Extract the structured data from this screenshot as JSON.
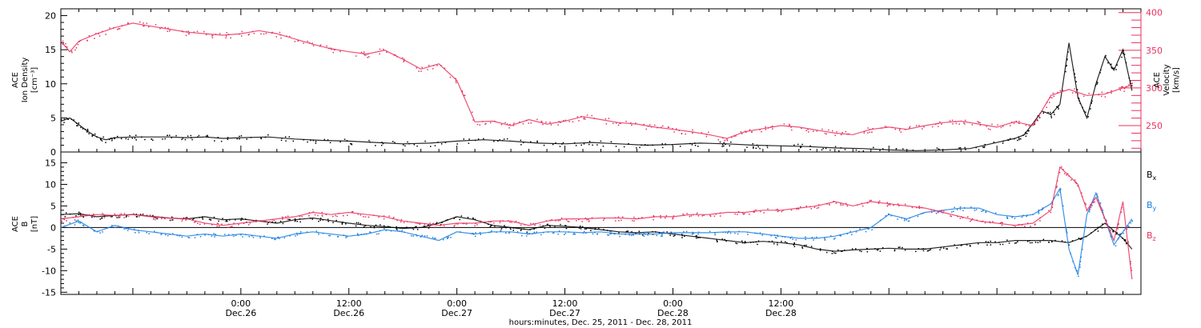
{
  "colors": {
    "black": "#000000",
    "pink": "#e8315f",
    "blue": "#1a7fe0"
  },
  "chart_data": [
    {
      "type": "scatter",
      "ylabel_lines": [
        "ACE",
        "Ion Density",
        "[cm⁻³]"
      ],
      "y2label_lines": [
        "ACE",
        "Velocity",
        "[km/s]"
      ],
      "xlim_hours": [
        -20,
        100
      ],
      "ylim": [
        0,
        21
      ],
      "y2lim": [
        215,
        405
      ],
      "yticks": [
        0,
        5,
        10,
        15,
        20
      ],
      "y2ticks": [
        250,
        300,
        350,
        400
      ],
      "series": [
        {
          "key": "density",
          "color": "#000000",
          "axis": "left",
          "x": [
            -20,
            -19,
            -18,
            -17,
            -16,
            -15,
            -14,
            -12,
            -10,
            -8,
            -6,
            -4,
            -2,
            0,
            3,
            6,
            9,
            12,
            15,
            18,
            21,
            24,
            27,
            30,
            33,
            36,
            39,
            42,
            45,
            48,
            51,
            54,
            57,
            60,
            63,
            66,
            69,
            72,
            75,
            78,
            81,
            84,
            86,
            87,
            88,
            89,
            90,
            91,
            92,
            93,
            94,
            95,
            96,
            97,
            98,
            99
          ],
          "y": [
            4.5,
            5,
            4,
            3,
            2.2,
            1.8,
            2.1,
            2.2,
            2.2,
            2.2,
            2.1,
            2.2,
            2.0,
            2.1,
            2.2,
            1.9,
            1.7,
            1.6,
            1.4,
            1.2,
            1.3,
            1.6,
            1.8,
            1.6,
            1.3,
            1.2,
            1.4,
            1.2,
            1.0,
            1.1,
            1.3,
            1.2,
            1.0,
            0.9,
            0.8,
            0.6,
            0.5,
            0.3,
            0.2,
            0.3,
            0.5,
            1.4,
            2.0,
            2.5,
            4.2,
            6.0,
            5.5,
            7.0,
            16.0,
            8.0,
            5.0,
            10.0,
            14.0,
            12.0,
            15.0,
            9.0
          ]
        },
        {
          "key": "velocity",
          "color": "#e8315f",
          "axis": "right",
          "x": [
            -20,
            -19,
            -18,
            -16,
            -14,
            -12,
            -10,
            -8,
            -6,
            -4,
            -2,
            0,
            2,
            4,
            6,
            8,
            10,
            12,
            14,
            16,
            18,
            20,
            22,
            24,
            26,
            28,
            30,
            32,
            34,
            36,
            38,
            40,
            42,
            44,
            46,
            48,
            50,
            52,
            54,
            56,
            58,
            60,
            62,
            64,
            66,
            68,
            70,
            72,
            74,
            76,
            78,
            80,
            82,
            84,
            86,
            88,
            90,
            92,
            94,
            96,
            98,
            99
          ],
          "y": [
            362,
            348,
            362,
            372,
            380,
            386,
            382,
            378,
            374,
            372,
            370,
            372,
            376,
            372,
            365,
            358,
            352,
            348,
            345,
            350,
            338,
            325,
            332,
            310,
            255,
            256,
            250,
            258,
            252,
            256,
            262,
            258,
            254,
            252,
            248,
            245,
            242,
            238,
            233,
            242,
            246,
            250,
            248,
            244,
            240,
            238,
            245,
            248,
            245,
            250,
            254,
            256,
            252,
            248,
            255,
            250,
            290,
            298,
            290,
            292,
            300,
            304
          ]
        }
      ]
    },
    {
      "type": "scatter",
      "ylabel_lines": [
        "ACE",
        "B",
        "[nT]"
      ],
      "xlim_hours": [
        -20,
        100
      ],
      "ylim": [
        -15.5,
        17.5
      ],
      "yticks": [
        -15,
        -10,
        -5,
        0,
        5,
        10,
        15
      ],
      "zero_line": true,
      "legend": [
        {
          "text": "B",
          "sub": "x",
          "color": "#000000"
        },
        {
          "text": "B",
          "sub": "y",
          "color": "#1a7fe0"
        },
        {
          "text": "B",
          "sub": "z",
          "color": "#e8315f"
        }
      ],
      "series": [
        {
          "key": "Bx",
          "color": "#000000",
          "x": [
            -20,
            -18,
            -16,
            -14,
            -12,
            -10,
            -8,
            -6,
            -4,
            -2,
            0,
            2,
            4,
            6,
            8,
            10,
            12,
            14,
            16,
            18,
            20,
            22,
            24,
            26,
            28,
            30,
            32,
            34,
            36,
            38,
            40,
            42,
            44,
            46,
            48,
            50,
            52,
            54,
            56,
            58,
            60,
            62,
            64,
            66,
            68,
            70,
            72,
            74,
            76,
            78,
            80,
            82,
            84,
            86,
            88,
            90,
            92,
            94,
            96,
            98,
            99
          ],
          "y": [
            3,
            3.2,
            2.5,
            2.8,
            3.0,
            2.6,
            2.2,
            2.0,
            2.5,
            1.8,
            2.0,
            1.5,
            1.0,
            1.8,
            2.2,
            1.6,
            1.0,
            0.5,
            0.2,
            -0.2,
            0.0,
            1.0,
            2.5,
            1.8,
            0.5,
            0.0,
            -0.5,
            0.5,
            0.3,
            0.0,
            -0.5,
            -1.0,
            -1.2,
            -1.0,
            -1.5,
            -2.0,
            -2.5,
            -3.0,
            -3.5,
            -3.2,
            -3.5,
            -4.0,
            -5.0,
            -5.5,
            -5.2,
            -5.0,
            -4.8,
            -5.0,
            -5.0,
            -4.5,
            -4.0,
            -3.5,
            -3.5,
            -3.0,
            -3.0,
            -3.0,
            -3.5,
            -2.0,
            1.0,
            -2.5,
            -5.0
          ]
        },
        {
          "key": "By",
          "color": "#1a7fe0",
          "x": [
            -20,
            -18,
            -16,
            -14,
            -12,
            -10,
            -8,
            -6,
            -4,
            -2,
            0,
            2,
            4,
            6,
            8,
            10,
            12,
            14,
            16,
            18,
            20,
            22,
            24,
            26,
            28,
            30,
            32,
            34,
            36,
            38,
            40,
            42,
            44,
            46,
            48,
            50,
            52,
            54,
            56,
            58,
            60,
            62,
            64,
            66,
            68,
            70,
            72,
            74,
            76,
            78,
            80,
            82,
            84,
            86,
            88,
            90,
            91,
            92,
            93,
            94,
            95,
            96,
            97,
            98,
            99
          ],
          "y": [
            0,
            1.5,
            -1.0,
            0.5,
            -0.5,
            -1.0,
            -1.5,
            -2.0,
            -1.5,
            -2.0,
            -1.5,
            -2.0,
            -2.5,
            -1.5,
            -1.0,
            -1.5,
            -2.0,
            -1.5,
            -0.5,
            -1.0,
            -2.0,
            -3.0,
            -1.0,
            -1.5,
            -1.0,
            -1.0,
            -1.5,
            -1.0,
            -1.0,
            -1.2,
            -1.0,
            -1.5,
            -1.5,
            -1.5,
            -1.2,
            -1.2,
            -1.2,
            -1.0,
            -1.0,
            -1.5,
            -2.0,
            -2.5,
            -2.5,
            -2.0,
            -1.0,
            0.0,
            3.0,
            2.0,
            3.5,
            4.0,
            4.5,
            4.5,
            3.0,
            2.5,
            3.0,
            5.5,
            9.0,
            -5.0,
            -11.0,
            3.0,
            8.0,
            2.0,
            -4.0,
            -1.0,
            2.0
          ]
        },
        {
          "key": "Bz",
          "color": "#e8315f",
          "x": [
            -20,
            -18,
            -16,
            -14,
            -12,
            -10,
            -8,
            -6,
            -4,
            -2,
            0,
            2,
            4,
            6,
            8,
            10,
            12,
            14,
            16,
            18,
            20,
            22,
            24,
            26,
            28,
            30,
            32,
            34,
            36,
            38,
            40,
            42,
            44,
            46,
            48,
            50,
            52,
            54,
            56,
            58,
            60,
            62,
            64,
            66,
            68,
            70,
            72,
            74,
            76,
            78,
            80,
            82,
            84,
            86,
            88,
            90,
            91,
            92,
            93,
            94,
            95,
            96,
            97,
            98,
            99
          ],
          "y": [
            2.0,
            2.5,
            3.0,
            2.8,
            3.0,
            2.5,
            2.2,
            2.0,
            1.0,
            0.5,
            1.0,
            1.5,
            2.0,
            2.5,
            3.5,
            3.0,
            3.5,
            3.0,
            2.5,
            1.5,
            1.0,
            0.5,
            1.0,
            1.0,
            1.5,
            1.5,
            0.5,
            1.5,
            2.0,
            2.0,
            2.2,
            2.2,
            2.0,
            2.5,
            2.5,
            3.0,
            3.0,
            3.5,
            3.5,
            4.0,
            4.0,
            4.5,
            5.0,
            6.0,
            5.0,
            6.0,
            5.5,
            5.0,
            4.5,
            3.5,
            2.5,
            1.5,
            1.0,
            0.5,
            1.0,
            4.0,
            14.0,
            12.0,
            10.0,
            4.0,
            7.0,
            2.0,
            -3.0,
            6.0,
            -12.0
          ]
        }
      ]
    },
    {
      "type": "time-axis",
      "xlabel": "hours:minutes, Dec. 25, 2011 - Dec. 28, 2011",
      "ticks": [
        {
          "hour": 0,
          "time": "0:00",
          "date": "Dec.26"
        },
        {
          "hour": 12,
          "time": "12:00",
          "date": "Dec.26"
        },
        {
          "hour": 24,
          "time": "0:00",
          "date": "Dec.27"
        },
        {
          "hour": 36,
          "time": "12:00",
          "date": "Dec.27"
        },
        {
          "hour": 48,
          "time": "0:00",
          "date": "Dec.28"
        },
        {
          "hour": 60,
          "time": "12:00",
          "date": "Dec.28"
        }
      ]
    }
  ]
}
